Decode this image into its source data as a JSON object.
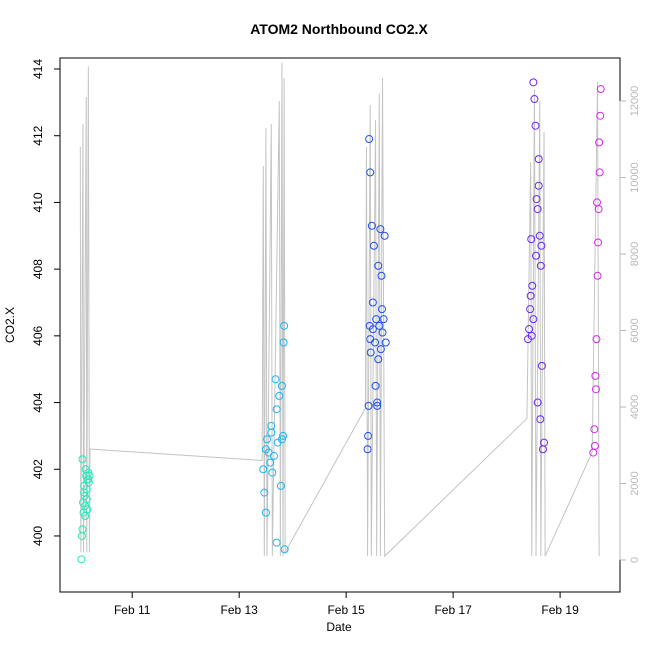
{
  "chart_data": {
    "type": "scatter",
    "title": "ATOM2 Northbound CO2.X",
    "x_label": "Date",
    "y_label": "CO2.X",
    "xlim": [
      9.65,
      20.12
    ],
    "xticks": [
      {
        "value": 11,
        "label": "Feb 11"
      },
      {
        "value": 13,
        "label": "Feb 13"
      },
      {
        "value": 15,
        "label": "Feb 15"
      },
      {
        "value": 17,
        "label": "Feb 17"
      },
      {
        "value": 19,
        "label": "Feb 19"
      }
    ],
    "ylim": [
      398.32,
      414.33
    ],
    "yticks": [
      400,
      402,
      404,
      406,
      408,
      410,
      412,
      414
    ],
    "y2lim": [
      -837,
      13124
    ],
    "y2ticks": [
      0,
      2000,
      4000,
      6000,
      8000,
      10000,
      12000
    ],
    "y2color": "#b8b8b8",
    "series": [
      {
        "color": "#2ee6b8",
        "x": [
          10.05,
          10.06,
          10.07,
          10.08,
          10.09,
          10.1,
          10.11,
          10.12,
          10.13,
          10.14,
          10.15,
          10.16,
          10.17,
          10.18,
          10.19,
          10.2,
          10.07,
          10.1,
          10.12,
          10.15,
          10.18
        ],
        "values": [
          399.3,
          400.0,
          400.2,
          401.0,
          400.7,
          401.5,
          401.2,
          400.6,
          402.0,
          401.8,
          401.1,
          400.8,
          401.7,
          401.9,
          401.6,
          401.8,
          402.3,
          401.3,
          400.9,
          401.4,
          401.7
        ]
      },
      {
        "color": "#1ab8f0",
        "x": [
          13.45,
          13.47,
          13.5,
          13.52,
          13.55,
          13.58,
          13.6,
          13.62,
          13.65,
          13.68,
          13.7,
          13.72,
          13.75,
          13.78,
          13.8,
          13.82,
          13.84,
          13.85,
          13.5,
          13.6,
          13.7,
          13.8,
          13.83
        ],
        "values": [
          402.0,
          401.3,
          400.7,
          402.9,
          402.5,
          402.2,
          403.3,
          401.9,
          402.4,
          404.7,
          399.8,
          402.8,
          404.2,
          401.5,
          402.9,
          403.0,
          406.3,
          399.6,
          402.6,
          403.1,
          403.8,
          404.5,
          405.8
        ]
      },
      {
        "color": "#2050f0",
        "x": [
          15.4,
          15.41,
          15.42,
          15.43,
          15.44,
          15.45,
          15.46,
          15.48,
          15.5,
          15.52,
          15.54,
          15.55,
          15.56,
          15.58,
          15.6,
          15.62,
          15.64,
          15.65,
          15.66,
          15.68,
          15.7,
          15.72,
          15.74,
          15.5,
          15.6,
          15.45,
          15.58,
          15.67
        ],
        "values": [
          402.6,
          403.0,
          403.9,
          411.9,
          406.3,
          410.9,
          405.5,
          409.3,
          407.0,
          408.7,
          405.8,
          404.5,
          406.5,
          403.9,
          408.1,
          406.3,
          409.2,
          405.6,
          407.8,
          406.1,
          406.5,
          409.0,
          405.8,
          406.2,
          405.3,
          405.9,
          404.0,
          406.8
        ]
      },
      {
        "color": "#6a2af0",
        "x": [
          18.4,
          18.42,
          18.44,
          18.46,
          18.48,
          18.5,
          18.52,
          18.54,
          18.56,
          18.58,
          18.6,
          18.62,
          18.64,
          18.66,
          18.68,
          18.7,
          18.45,
          18.5,
          18.55,
          18.6,
          18.65,
          18.58,
          18.63,
          18.47
        ],
        "values": [
          405.9,
          406.2,
          406.8,
          408.9,
          407.5,
          413.6,
          413.1,
          412.3,
          410.1,
          409.8,
          411.3,
          409.0,
          408.1,
          405.1,
          402.6,
          402.8,
          407.2,
          406.5,
          408.4,
          410.5,
          408.7,
          404.0,
          403.5,
          406.0
        ]
      },
      {
        "color": "#d42ae8",
        "x": [
          19.62,
          19.64,
          19.66,
          19.68,
          19.7,
          19.72,
          19.74,
          19.76,
          19.65,
          19.67,
          19.71,
          19.73,
          19.75,
          19.69
        ],
        "values": [
          402.5,
          403.2,
          404.8,
          405.9,
          407.8,
          409.8,
          410.9,
          413.4,
          402.7,
          404.4,
          408.8,
          411.8,
          412.6,
          410.0
        ]
      },
      {
        "type": "line",
        "axis": "y2",
        "color": "#c4c4c4",
        "x": [
          10.03,
          10.04,
          10.08,
          10.09,
          10.14,
          10.15,
          10.18,
          10.2,
          10.21,
          13.43,
          13.45,
          13.47,
          13.5,
          13.52,
          13.6,
          13.62,
          13.75,
          13.77,
          13.8,
          13.82,
          13.84,
          13.86,
          15.36,
          15.38,
          15.4,
          15.45,
          15.47,
          15.55,
          15.57,
          15.62,
          15.64,
          15.68,
          15.72,
          18.38,
          18.45,
          18.47,
          18.52,
          18.55,
          18.62,
          18.64,
          18.7,
          18.72,
          19.6,
          19.7,
          19.73
        ],
        "values": [
          10800,
          200,
          11400,
          200,
          12100,
          200,
          12900,
          200,
          2900,
          2600,
          10300,
          100,
          11300,
          100,
          11400,
          100,
          12000,
          100,
          13000,
          100,
          12600,
          200,
          3970,
          10800,
          100,
          11900,
          100,
          11500,
          100,
          12200,
          100,
          12600,
          100,
          3700,
          10400,
          100,
          12300,
          100,
          12000,
          100,
          11200,
          100,
          2820,
          12500,
          100
        ]
      }
    ]
  }
}
